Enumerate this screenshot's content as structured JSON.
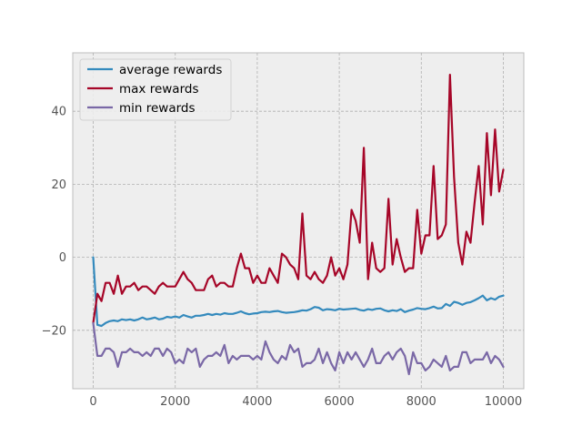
{
  "chart_data": {
    "type": "line",
    "xlim": [
      -500,
      10500
    ],
    "ylim": [
      -36,
      56
    ],
    "x_ticks": [
      0,
      2000,
      4000,
      6000,
      8000,
      10000
    ],
    "y_ticks": [
      -20,
      0,
      20,
      40
    ],
    "x_tick_labels": [
      "0",
      "2000",
      "4000",
      "6000",
      "8000",
      "10000"
    ],
    "y_tick_labels": [
      "−20",
      "0",
      "20",
      "40"
    ],
    "grid": true,
    "legend_position": "top-left",
    "x": [
      0,
      100,
      200,
      300,
      400,
      500,
      600,
      700,
      800,
      900,
      1000,
      1100,
      1200,
      1300,
      1400,
      1500,
      1600,
      1700,
      1800,
      1900,
      2000,
      2100,
      2200,
      2300,
      2400,
      2500,
      2600,
      2700,
      2800,
      2900,
      3000,
      3100,
      3200,
      3300,
      3400,
      3500,
      3600,
      3700,
      3800,
      3900,
      4000,
      4100,
      4200,
      4300,
      4400,
      4500,
      4600,
      4700,
      4800,
      4900,
      5000,
      5100,
      5200,
      5300,
      5400,
      5500,
      5600,
      5700,
      5800,
      5900,
      6000,
      6100,
      6200,
      6300,
      6400,
      6500,
      6600,
      6700,
      6800,
      6900,
      7000,
      7100,
      7200,
      7300,
      7400,
      7500,
      7600,
      7700,
      7800,
      7900,
      8000,
      8100,
      8200,
      8300,
      8400,
      8500,
      8600,
      8700,
      8800,
      8900,
      9000,
      9100,
      9200,
      9300,
      9400,
      9500,
      9600,
      9700,
      9800,
      9900,
      10000
    ],
    "series": [
      {
        "name": "average rewards",
        "color": "#348abd",
        "values": [
          0,
          -18.5,
          -18.8,
          -18,
          -17.5,
          -17.3,
          -17.5,
          -17,
          -17.2,
          -17,
          -17.3,
          -17,
          -16.5,
          -17,
          -16.8,
          -16.5,
          -17,
          -16.8,
          -16.3,
          -16.5,
          -16.2,
          -16.5,
          -15.8,
          -16.2,
          -16.5,
          -16,
          -16,
          -15.8,
          -15.5,
          -15.8,
          -15.5,
          -15.7,
          -15.3,
          -15.5,
          -15.5,
          -15.2,
          -14.8,
          -15.3,
          -15.6,
          -15.4,
          -15.3,
          -15,
          -14.9,
          -15,
          -14.8,
          -14.7,
          -15,
          -15.2,
          -15.1,
          -15,
          -14.8,
          -14.5,
          -14.6,
          -14.2,
          -13.6,
          -13.8,
          -14.5,
          -14.2,
          -14.3,
          -14.5,
          -14.1,
          -14.3,
          -14.2,
          -14.1,
          -14,
          -14.4,
          -14.6,
          -14.2,
          -14.4,
          -14.1,
          -14,
          -14.5,
          -14.8,
          -14.5,
          -14.7,
          -14.2,
          -15,
          -14.6,
          -14.3,
          -13.9,
          -14.1,
          -14.2,
          -13.9,
          -13.5,
          -14,
          -13.9,
          -12.8,
          -13.3,
          -12.2,
          -12.5,
          -13,
          -12.5,
          -12.3,
          -11.8,
          -11.2,
          -10.5,
          -11.8,
          -11.2,
          -11.6,
          -10.8,
          -10.5
        ]
      },
      {
        "name": "max rewards",
        "color": "#a60628",
        "values": [
          -18,
          -10,
          -12,
          -7,
          -7,
          -10,
          -5,
          -10,
          -8,
          -8,
          -7,
          -9,
          -8,
          -8,
          -9,
          -10,
          -8,
          -7,
          -8,
          -8,
          -8,
          -6,
          -4,
          -6,
          -7,
          -9,
          -9,
          -9,
          -6,
          -5,
          -8,
          -7,
          -7,
          -8,
          -8,
          -3,
          1,
          -3,
          -3,
          -7,
          -5,
          -7,
          -7,
          -3,
          -5,
          -7,
          1,
          0,
          -2,
          -3,
          -6,
          12,
          -5,
          -6,
          -4,
          -6,
          -7,
          -5,
          0,
          -5,
          -3,
          -6,
          -2,
          13,
          10,
          4,
          30,
          -6,
          4,
          -3,
          -4,
          -3,
          16,
          -2,
          5,
          0,
          -4,
          -3,
          -3,
          13,
          1,
          6,
          6,
          25,
          5,
          6,
          9,
          50,
          22,
          4,
          -2,
          7,
          4,
          15,
          25,
          9,
          34,
          17,
          35,
          18,
          24
        ]
      },
      {
        "name": "min rewards",
        "color": "#7a68a6",
        "values": [
          -18,
          -27,
          -27,
          -25,
          -25,
          -26,
          -30,
          -26,
          -26,
          -25,
          -26,
          -26,
          -27,
          -26,
          -27,
          -25,
          -25,
          -27,
          -25,
          -26,
          -29,
          -28,
          -29,
          -25,
          -26,
          -25,
          -30,
          -28,
          -27,
          -27,
          -26,
          -27,
          -24,
          -29,
          -27,
          -28,
          -27,
          -27,
          -27,
          -28,
          -27,
          -28,
          -23,
          -26,
          -28,
          -29,
          -27,
          -28,
          -24,
          -26,
          -25,
          -30,
          -29,
          -29,
          -28,
          -25,
          -29,
          -26,
          -29,
          -31,
          -26,
          -29,
          -26,
          -28,
          -26,
          -28,
          -30,
          -28,
          -25,
          -29,
          -29,
          -27,
          -26,
          -28,
          -26,
          -25,
          -27,
          -32,
          -26,
          -29,
          -29,
          -31,
          -30,
          -28,
          -29,
          -30,
          -27,
          -31,
          -30,
          -30,
          -26,
          -26,
          -29,
          -28,
          -28,
          -28,
          -26,
          -29,
          -27,
          -28,
          -30
        ]
      }
    ]
  }
}
